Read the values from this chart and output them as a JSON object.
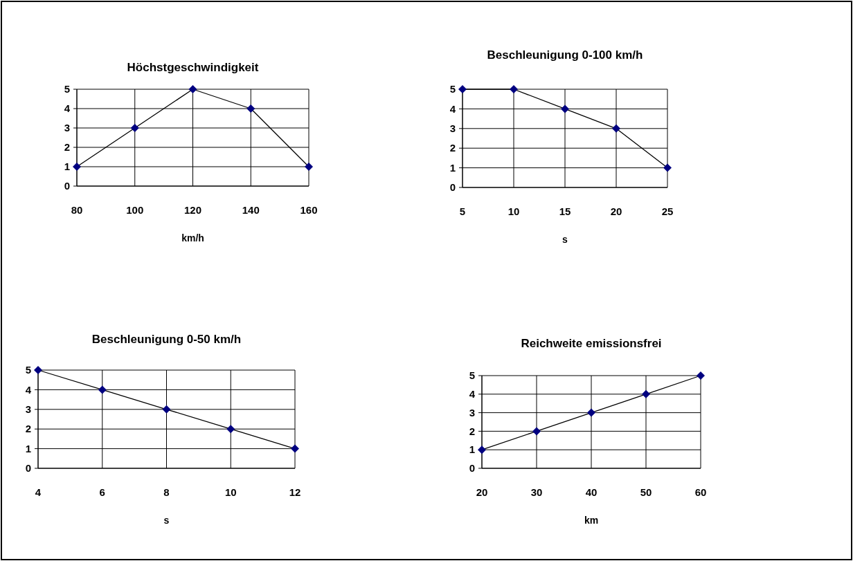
{
  "chart_data": [
    {
      "type": "line",
      "title": "Höchstgeschwindigkeit",
      "xlabel": "km/h",
      "x": [
        80,
        100,
        120,
        140,
        160
      ],
      "xlim": [
        80,
        160
      ],
      "xticks": [
        80,
        100,
        120,
        140,
        160
      ],
      "ylim": [
        0,
        5
      ],
      "yticks": [
        0,
        1,
        2,
        3,
        4,
        5
      ],
      "grid": true,
      "marker": "diamond",
      "line_style": "solid",
      "series": [
        {
          "color": "#000080",
          "values": [
            1,
            3,
            5,
            4,
            1
          ]
        }
      ]
    },
    {
      "type": "line",
      "title": "Beschleunigung 0-100 km/h",
      "xlabel": "s",
      "x": [
        5,
        10,
        15,
        20,
        25
      ],
      "xlim": [
        5,
        25
      ],
      "xticks": [
        5,
        10,
        15,
        20,
        25
      ],
      "ylim": [
        0,
        5
      ],
      "yticks": [
        0,
        1,
        2,
        3,
        4,
        5
      ],
      "grid": true,
      "marker": "diamond",
      "line_style": "solid",
      "series": [
        {
          "color": "#000080",
          "values": [
            5,
            5,
            4,
            3,
            1
          ]
        }
      ]
    },
    {
      "type": "line",
      "title": "Beschleunigung 0-50 km/h",
      "xlabel": "s",
      "x": [
        4,
        6,
        8,
        10,
        12
      ],
      "xlim": [
        4,
        12
      ],
      "xticks": [
        4,
        6,
        8,
        10,
        12
      ],
      "ylim": [
        0,
        5
      ],
      "yticks": [
        0,
        1,
        2,
        3,
        4,
        5
      ],
      "grid": true,
      "marker": "diamond",
      "line_style": "solid",
      "series": [
        {
          "color": "#000080",
          "values": [
            5,
            4,
            3,
            2,
            1
          ]
        }
      ]
    },
    {
      "type": "line",
      "title": "Reichweite emissionsfrei",
      "xlabel": "km",
      "x": [
        20,
        30,
        40,
        50,
        60
      ],
      "xlim": [
        20,
        60
      ],
      "xticks": [
        20,
        30,
        40,
        50,
        60
      ],
      "ylim": [
        0,
        5
      ],
      "yticks": [
        0,
        1,
        2,
        3,
        4,
        5
      ],
      "grid": true,
      "marker": "diamond",
      "line_style": "solid",
      "series": [
        {
          "color": "#000080",
          "values": [
            1,
            2,
            3,
            4,
            5
          ]
        }
      ]
    }
  ]
}
